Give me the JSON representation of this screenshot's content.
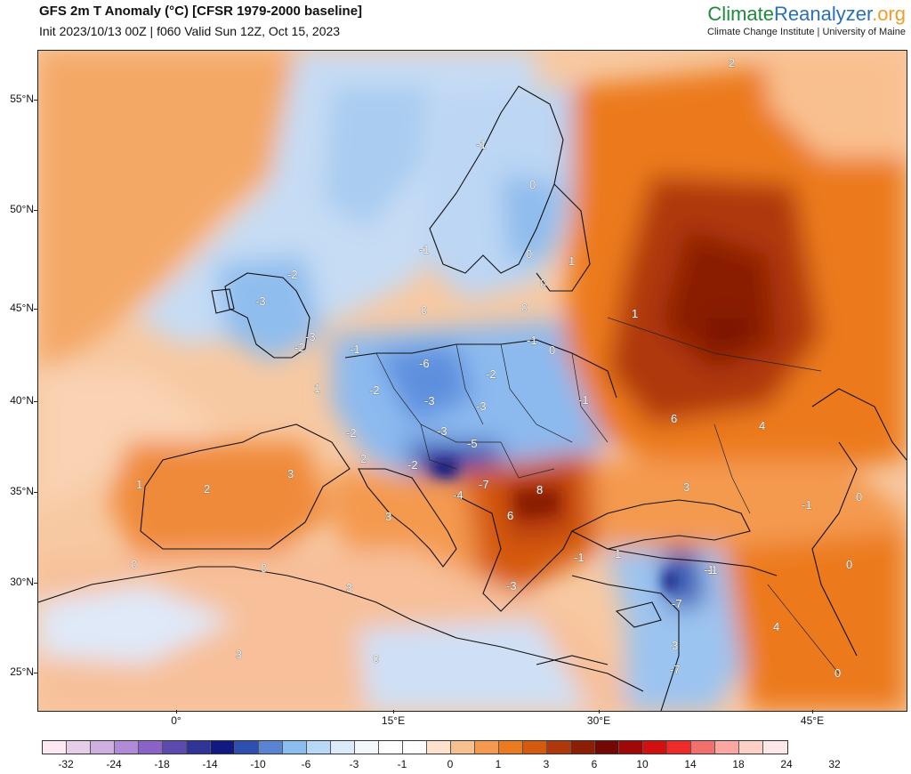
{
  "header": {
    "title": "GFS 2m T Anomaly (°C) [CFSR 1979-2000 baseline]",
    "subtitle": "Init 2023/10/13 00Z | f060 Valid Sun 12Z, Oct 15, 2023",
    "brand_part1": "Climate",
    "brand_part2": "Reanalyzer",
    "brand_part3": ".org",
    "tagline": "Climate Change Institute | University of Maine"
  },
  "axes": {
    "lat_labels": [
      "55°N",
      "50°N",
      "45°N",
      "40°N",
      "35°N",
      "30°N",
      "25°N"
    ],
    "lon_labels": [
      "0°",
      "15°E",
      "30°E",
      "45°E"
    ]
  },
  "colorbar": {
    "labels": [
      "-32",
      "-24",
      "-18",
      "-14",
      "-10",
      "-6",
      "-3",
      "-1",
      "0",
      "1",
      "3",
      "6",
      "10",
      "14",
      "18",
      "24",
      "32"
    ],
    "colors": [
      "#fbe8f1",
      "#e6cde8",
      "#cdb0e0",
      "#b08ad6",
      "#8a62c8",
      "#5c4aae",
      "#2f3596",
      "#111a82",
      "#2f4fb0",
      "#5b83d4",
      "#8cbdf0",
      "#b7d8f6",
      "#dbeaf9",
      "#f3f7fc",
      "#ffffff",
      "#ffffff",
      "#fde3cc",
      "#f9c08f",
      "#f49a50",
      "#ec7a1f",
      "#d65a0d",
      "#b0380a",
      "#8a1f06",
      "#740804",
      "#a00808",
      "#d31010",
      "#ee2a2a",
      "#f56e6e",
      "#f9a7a0",
      "#fcd0c4",
      "#fbe6e8"
    ]
  },
  "map": {
    "contour_labels": [
      "2",
      "-1",
      "0",
      "-1",
      "0",
      "1",
      "0",
      "-2",
      "-3",
      "0",
      "1",
      "-2",
      "0",
      "-1",
      "1",
      "-1",
      "0",
      "-6",
      "-2",
      "-3",
      "-1",
      "-2",
      "-2",
      "-3",
      "-3",
      "-5",
      "2",
      "-2",
      "-4",
      "-7",
      "8",
      "6",
      "6",
      "3",
      "3",
      "-1",
      "4",
      "0",
      "1",
      "2",
      "3",
      "0",
      "0",
      "3",
      "-1",
      "-1",
      "1",
      "-7",
      "-3",
      "-7",
      "3",
      "0",
      "3",
      "4",
      "0",
      "0",
      "-1",
      "-3"
    ]
  }
}
